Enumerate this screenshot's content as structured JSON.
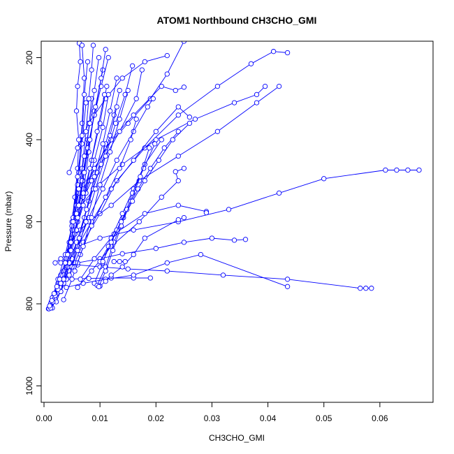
{
  "chart_data": {
    "type": "line",
    "title": "ATOM1 Northbound CH3CHO_GMI",
    "xlabel": "CH3CHO_GMI",
    "ylabel": "Pressure (mbar)",
    "xlim": [
      -0.0005,
      0.0695
    ],
    "ylim": [
      1040,
      160
    ],
    "y_reversed": true,
    "x_ticks": [
      0.0,
      0.01,
      0.02,
      0.03,
      0.04,
      0.05,
      0.06
    ],
    "x_tick_labels": [
      "0.00",
      "0.01",
      "0.02",
      "0.03",
      "0.04",
      "0.05",
      "0.06"
    ],
    "y_ticks": [
      200,
      400,
      600,
      800,
      1000
    ],
    "y_tick_labels": [
      "200",
      "400",
      "600",
      "800",
      "1000"
    ],
    "grid": false,
    "marker": "open-circle",
    "series_color": "#0000ff",
    "series": [
      {
        "x": [
          0.0008,
          0.0012,
          0.0015,
          0.002,
          0.0025,
          0.003,
          0.0035,
          0.004,
          0.0045,
          0.005,
          0.0055,
          0.006,
          0.0062,
          0.0058,
          0.006,
          0.0065,
          0.0063
        ],
        "y": [
          812,
          800,
          790,
          775,
          760,
          745,
          720,
          690,
          650,
          600,
          540,
          470,
          400,
          330,
          270,
          210,
          165
        ]
      },
      {
        "x": [
          0.0009,
          0.0013,
          0.0018,
          0.0025,
          0.0032,
          0.004,
          0.0048,
          0.0055,
          0.0062,
          0.0068,
          0.0072,
          0.0068
        ],
        "y": [
          812,
          795,
          780,
          760,
          735,
          700,
          650,
          580,
          480,
          360,
          250,
          170
        ]
      },
      {
        "x": [
          0.0015,
          0.002,
          0.003,
          0.004,
          0.0055,
          0.007,
          0.01,
          0.013,
          0.018,
          0.024,
          0.031,
          0.037,
          0.041,
          0.0435
        ],
        "y": [
          810,
          790,
          770,
          740,
          700,
          650,
          580,
          500,
          420,
          340,
          270,
          215,
          185,
          188
        ]
      },
      {
        "x": [
          0.0012,
          0.0018,
          0.0025,
          0.0035,
          0.0045,
          0.006,
          0.0085,
          0.012,
          0.016,
          0.02,
          0.024,
          0.026
        ],
        "y": [
          800,
          780,
          760,
          730,
          700,
          660,
          600,
          520,
          450,
          380,
          320,
          345
        ]
      },
      {
        "x": [
          0.002,
          0.003,
          0.004,
          0.006,
          0.01,
          0.016,
          0.024,
          0.033,
          0.042,
          0.05,
          0.061,
          0.063,
          0.065,
          0.067
        ],
        "y": [
          700,
          690,
          680,
          660,
          640,
          620,
          600,
          570,
          530,
          495,
          474,
          474,
          474,
          474
        ]
      },
      {
        "x": [
          0.003,
          0.006,
          0.01,
          0.015,
          0.022,
          0.032,
          0.0435,
          0.0565,
          0.0575,
          0.0585
        ],
        "y": [
          700,
          705,
          710,
          715,
          720,
          730,
          740,
          762,
          762,
          762
        ]
      },
      {
        "x": [
          0.004,
          0.008,
          0.012,
          0.016,
          0.019
        ],
        "y": [
          740,
          738,
          737,
          737,
          737
        ]
      },
      {
        "x": [
          0.006,
          0.01,
          0.014,
          0.02,
          0.025,
          0.03,
          0.034,
          0.036
        ],
        "y": [
          700,
          690,
          678,
          665,
          650,
          640,
          645,
          643
        ]
      },
      {
        "x": [
          0.004,
          0.007,
          0.011,
          0.016,
          0.022,
          0.028,
          0.0435
        ],
        "y": [
          760,
          750,
          740,
          730,
          700,
          680,
          758
        ]
      },
      {
        "x": [
          0.005,
          0.008,
          0.012,
          0.017,
          0.024,
          0.031,
          0.038,
          0.042
        ],
        "y": [
          640,
          600,
          560,
          500,
          440,
          380,
          310,
          270
        ]
      },
      {
        "x": [
          0.0055,
          0.009,
          0.014,
          0.02,
          0.027,
          0.034,
          0.038,
          0.0395
        ],
        "y": [
          580,
          520,
          460,
          400,
          350,
          310,
          290,
          270
        ]
      },
      {
        "x": [
          0.006,
          0.008,
          0.011,
          0.015,
          0.019,
          0.022,
          0.025
        ],
        "y": [
          560,
          500,
          420,
          360,
          300,
          240,
          160
        ]
      },
      {
        "x": [
          0.007,
          0.009,
          0.012,
          0.016,
          0.021,
          0.0235,
          0.025
        ],
        "y": [
          520,
          470,
          400,
          340,
          270,
          280,
          272
        ]
      },
      {
        "x": [
          0.0045,
          0.006,
          0.008,
          0.011,
          0.014,
          0.018,
          0.022
        ],
        "y": [
          480,
          420,
          360,
          300,
          250,
          210,
          195
        ]
      },
      {
        "x": [
          0.005,
          0.0065,
          0.0085,
          0.011,
          0.0135,
          0.0165,
          0.0175
        ],
        "y": [
          620,
          560,
          500,
          440,
          380,
          300,
          230
        ]
      },
      {
        "x": [
          0.006,
          0.0085,
          0.012,
          0.017,
          0.021,
          0.024,
          0.0235,
          0.025
        ],
        "y": [
          760,
          720,
          660,
          600,
          540,
          500,
          478,
          470
        ]
      },
      {
        "x": [
          0.0065,
          0.009,
          0.0125,
          0.018,
          0.024,
          0.029,
          0.029
        ],
        "y": [
          740,
          690,
          630,
          580,
          560,
          575,
          578
        ]
      },
      {
        "x": [
          0.01,
          0.011,
          0.012,
          0.014,
          0.016,
          0.018,
          0.024,
          0.025
        ],
        "y": [
          757,
          745,
          730,
          710,
          680,
          640,
          595,
          590
        ]
      },
      {
        "x": [
          0.003,
          0.0045,
          0.006,
          0.008,
          0.0105,
          0.013,
          0.016,
          0.0185,
          0.0195
        ],
        "y": [
          770,
          720,
          660,
          590,
          520,
          450,
          380,
          320,
          300
        ]
      },
      {
        "x": [
          0.0035,
          0.005,
          0.0065,
          0.0085,
          0.011,
          0.0135,
          0.0155,
          0.0165
        ],
        "y": [
          790,
          740,
          680,
          610,
          540,
          470,
          400,
          350
        ]
      },
      {
        "x": [
          0.0022,
          0.0035,
          0.005,
          0.0065,
          0.008,
          0.0095,
          0.011,
          0.0125,
          0.0135
        ],
        "y": [
          795,
          750,
          690,
          620,
          550,
          480,
          410,
          340,
          280
        ]
      },
      {
        "x": [
          0.0028,
          0.0042,
          0.0058,
          0.0072,
          0.0088,
          0.0102,
          0.0118,
          0.013
        ],
        "y": [
          760,
          710,
          650,
          590,
          520,
          460,
          390,
          320
        ]
      },
      {
        "x": [
          0.0018,
          0.003,
          0.0045,
          0.006,
          0.0075,
          0.009,
          0.0105,
          0.0115
        ],
        "y": [
          780,
          730,
          670,
          600,
          530,
          450,
          370,
          290
        ]
      },
      {
        "x": [
          0.0025,
          0.004,
          0.0055,
          0.007,
          0.0085,
          0.01,
          0.0112
        ],
        "y": [
          750,
          690,
          620,
          540,
          450,
          360,
          270
        ]
      },
      {
        "x": [
          0.0015,
          0.0025,
          0.0038,
          0.005,
          0.0062,
          0.0075,
          0.009,
          0.0105
        ],
        "y": [
          785,
          740,
          680,
          610,
          530,
          440,
          340,
          230
        ]
      },
      {
        "x": [
          0.004,
          0.0055,
          0.007,
          0.0082,
          0.0095,
          0.0108
        ],
        "y": [
          700,
          630,
          560,
          470,
          380,
          290
        ]
      },
      {
        "x": [
          0.005,
          0.0063,
          0.0076,
          0.009,
          0.0105,
          0.0118,
          0.013
        ],
        "y": [
          710,
          640,
          570,
          490,
          410,
          330,
          250
        ]
      },
      {
        "x": [
          0.0045,
          0.006,
          0.0075,
          0.0092,
          0.011,
          0.0128,
          0.0145,
          0.0158
        ],
        "y": [
          730,
          670,
          600,
          520,
          440,
          360,
          290,
          220
        ]
      },
      {
        "x": [
          0.0055,
          0.007,
          0.0085,
          0.01,
          0.0118,
          0.0135,
          0.015
        ],
        "y": [
          720,
          660,
          590,
          510,
          430,
          350,
          280
        ]
      },
      {
        "x": [
          0.003,
          0.0045,
          0.0058,
          0.007,
          0.008,
          0.009
        ],
        "y": [
          770,
          700,
          620,
          530,
          430,
          330
        ]
      },
      {
        "x": [
          0.0035,
          0.0048,
          0.006,
          0.007,
          0.0078,
          0.0085
        ],
        "y": [
          740,
          670,
          590,
          500,
          400,
          300
        ]
      },
      {
        "x": [
          0.0038,
          0.005,
          0.006,
          0.0068,
          0.0075
        ],
        "y": [
          700,
          610,
          510,
          410,
          310
        ]
      },
      {
        "x": [
          0.0042,
          0.0052,
          0.006,
          0.0068,
          0.0072,
          0.0078
        ],
        "y": [
          680,
          590,
          490,
          390,
          290,
          210
        ]
      },
      {
        "x": [
          0.0048,
          0.0058,
          0.0068,
          0.0075,
          0.008,
          0.0085,
          0.0088
        ],
        "y": [
          650,
          560,
          470,
          380,
          300,
          230,
          170
        ]
      },
      {
        "x": [
          0.009,
          0.0105,
          0.012,
          0.014,
          0.016,
          0.018,
          0.021
        ],
        "y": [
          750,
          700,
          640,
          580,
          520,
          460,
          400
        ]
      },
      {
        "x": [
          0.0095,
          0.011,
          0.0125,
          0.0142,
          0.0158,
          0.0178,
          0.0198
        ],
        "y": [
          755,
          710,
          650,
          590,
          530,
          470,
          410
        ]
      },
      {
        "x": [
          0.0098,
          0.011,
          0.0123,
          0.0138,
          0.0155,
          0.0172,
          0.0188
        ],
        "y": [
          758,
          720,
          670,
          610,
          550,
          490,
          420
        ]
      },
      {
        "x": [
          0.01,
          0.0115,
          0.013,
          0.0148,
          0.0168,
          0.019,
          0.0215,
          0.024
        ],
        "y": [
          697,
          660,
          620,
          570,
          520,
          470,
          420,
          380
        ]
      },
      {
        "x": [
          0.0105,
          0.012,
          0.0138,
          0.0158,
          0.018,
          0.0205,
          0.023,
          0.026
        ],
        "y": [
          697,
          650,
          600,
          550,
          500,
          450,
          400,
          360
        ]
      },
      {
        "x": [
          0.0125,
          0.0135,
          0.0145
        ],
        "y": [
          697,
          697,
          697
        ]
      },
      {
        "x": [
          0.0058,
          0.0068,
          0.0078,
          0.009,
          0.0102,
          0.0115
        ],
        "y": [
          580,
          500,
          420,
          340,
          270,
          200
        ]
      },
      {
        "x": [
          0.0062,
          0.0072,
          0.0082,
          0.0092,
          0.0102,
          0.011
        ],
        "y": [
          560,
          480,
          400,
          320,
          250,
          180
        ]
      },
      {
        "x": [
          0.0052,
          0.0062,
          0.0072,
          0.0082,
          0.009,
          0.0098
        ],
        "y": [
          600,
          520,
          440,
          360,
          280,
          200
        ]
      },
      {
        "x": [
          0.0012,
          0.0016,
          0.002,
          0.0025,
          0.003
        ],
        "y": [
          810,
          795,
          780,
          765,
          750
        ]
      },
      {
        "x": [
          0.001,
          0.0014,
          0.0018,
          0.0023,
          0.0028
        ],
        "y": [
          805,
          792,
          775,
          758,
          740
        ]
      }
    ]
  }
}
